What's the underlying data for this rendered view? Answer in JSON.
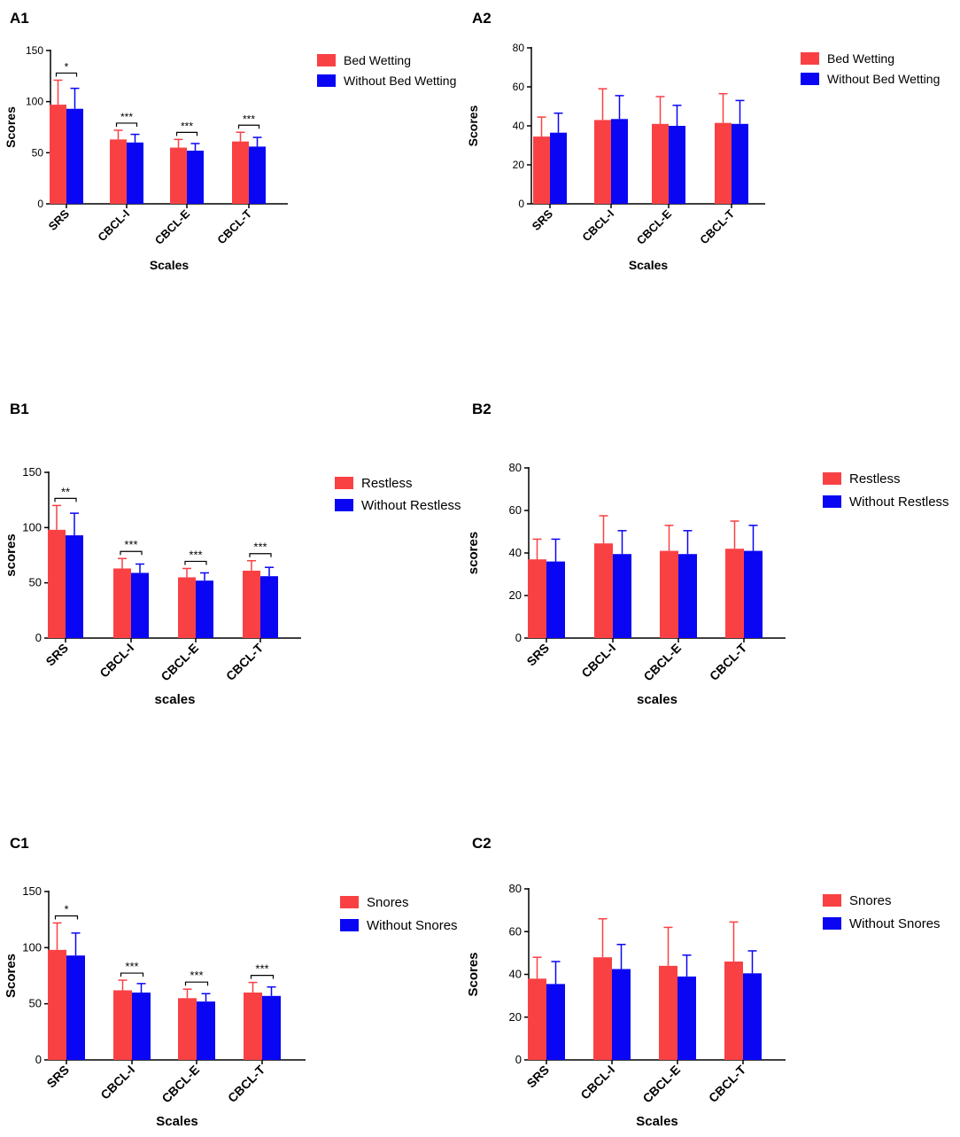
{
  "colors": {
    "group1": "#f94144",
    "group2": "#0a06f4",
    "axis": "#000000"
  },
  "chart_data": [
    {
      "panel": "A1",
      "type": "bar",
      "categories": [
        "SRS",
        "CBCL-I",
        "CBCL-E",
        "CBCL-T"
      ],
      "series": [
        {
          "name": "Bed Wetting",
          "values": [
            97,
            63,
            55,
            61
          ],
          "errors": [
            24,
            9,
            8,
            9
          ]
        },
        {
          "name": "Without Bed Wetting",
          "values": [
            93,
            60,
            52,
            56
          ],
          "errors": [
            20,
            8,
            7,
            9
          ]
        }
      ],
      "significance": [
        "*",
        "***",
        "***",
        "***"
      ],
      "title": "",
      "xlabel": "Scales",
      "ylabel": "Scores",
      "ylim": [
        0,
        150
      ],
      "yticks": [
        0,
        50,
        100,
        150
      ],
      "grid": false,
      "legend": "right"
    },
    {
      "panel": "A2",
      "type": "bar",
      "categories": [
        "SRS",
        "CBCL-I",
        "CBCL-E",
        "CBCL-T"
      ],
      "series": [
        {
          "name": "Bed Wetting",
          "values": [
            34.5,
            43,
            41,
            41.5
          ],
          "errors": [
            10,
            16,
            14,
            15
          ]
        },
        {
          "name": "Without Bed Wetting",
          "values": [
            36.5,
            43.5,
            40,
            41
          ],
          "errors": [
            10,
            12,
            10.5,
            12
          ]
        }
      ],
      "significance": [],
      "title": "",
      "xlabel": "Scales",
      "ylabel": "Scores",
      "ylim": [
        0,
        80
      ],
      "yticks": [
        0,
        20,
        40,
        60,
        80
      ],
      "grid": false,
      "legend": "right"
    },
    {
      "panel": "B1",
      "type": "bar",
      "categories": [
        "SRS",
        "CBCL-I",
        "CBCL-E",
        "CBCL-T"
      ],
      "series": [
        {
          "name": "Restless",
          "values": [
            98,
            63,
            55,
            61
          ],
          "errors": [
            22,
            9,
            8,
            9
          ]
        },
        {
          "name": "Without Restless",
          "values": [
            93,
            59,
            52,
            56
          ],
          "errors": [
            20,
            8,
            7,
            8
          ]
        }
      ],
      "significance": [
        "**",
        "***",
        "***",
        "***"
      ],
      "title": "",
      "xlabel": "scales",
      "ylabel": "scores",
      "ylim": [
        0,
        150
      ],
      "yticks": [
        0,
        50,
        100,
        150
      ],
      "grid": false,
      "legend": "right"
    },
    {
      "panel": "B2",
      "type": "bar",
      "categories": [
        "SRS",
        "CBCL-I",
        "CBCL-E",
        "CBCL-T"
      ],
      "series": [
        {
          "name": "Restless",
          "values": [
            37,
            44.5,
            41,
            42
          ],
          "errors": [
            9.5,
            13,
            12,
            13
          ]
        },
        {
          "name": "Without Restless",
          "values": [
            36,
            39.5,
            39.5,
            41
          ],
          "errors": [
            10.5,
            11,
            11,
            12
          ]
        }
      ],
      "significance": [],
      "title": "",
      "xlabel": "scales",
      "ylabel": "scores",
      "ylim": [
        0,
        80
      ],
      "yticks": [
        0,
        20,
        40,
        60,
        80
      ],
      "grid": false,
      "legend": "right"
    },
    {
      "panel": "C1",
      "type": "bar",
      "categories": [
        "SRS",
        "CBCL-I",
        "CBCL-E",
        "CBCL-T"
      ],
      "series": [
        {
          "name": "Snores",
          "values": [
            98,
            62,
            55,
            60
          ],
          "errors": [
            24,
            9,
            8,
            9
          ]
        },
        {
          "name": "Without Snores",
          "values": [
            93,
            60,
            52,
            57
          ],
          "errors": [
            20,
            8,
            7,
            8
          ]
        }
      ],
      "significance": [
        "*",
        "***",
        "***",
        "***"
      ],
      "title": "",
      "xlabel": "Scales",
      "ylabel": "Scores",
      "ylim": [
        0,
        150
      ],
      "yticks": [
        0,
        50,
        100,
        150
      ],
      "grid": false,
      "legend": "right"
    },
    {
      "panel": "C2",
      "type": "bar",
      "categories": [
        "SRS",
        "CBCL-I",
        "CBCL-E",
        "CBCL-T"
      ],
      "series": [
        {
          "name": "Snores",
          "values": [
            38,
            48,
            44,
            46
          ],
          "errors": [
            10,
            18,
            18,
            18.5
          ]
        },
        {
          "name": "Without Snores",
          "values": [
            35.5,
            42.5,
            39,
            40.5
          ],
          "errors": [
            10.5,
            11.5,
            10,
            10.5
          ]
        }
      ],
      "significance": [],
      "title": "",
      "xlabel": "Scales",
      "ylabel": "Scores",
      "ylim": [
        0,
        80
      ],
      "yticks": [
        0,
        20,
        40,
        60,
        80
      ],
      "grid": false,
      "legend": "right"
    }
  ]
}
